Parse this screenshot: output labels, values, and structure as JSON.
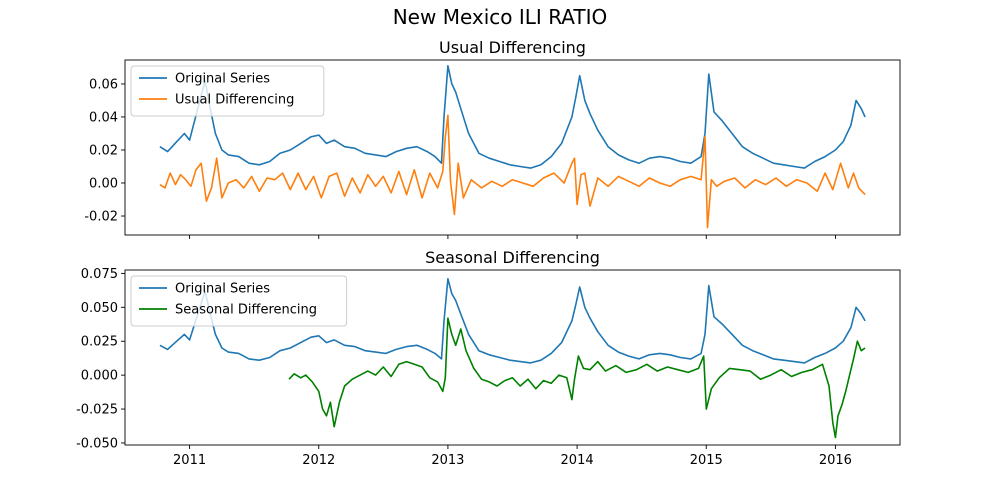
{
  "figure": {
    "title": "New Mexico ILI RATIO"
  },
  "colors": {
    "original": "#1f77b4",
    "usual": "#ff7f0e",
    "seasonal": "#008000"
  },
  "chart_data": [
    {
      "type": "line",
      "title": "Usual Differencing",
      "xlabel": "",
      "ylabel": "",
      "x_tick_labels": [
        "2011",
        "2012",
        "2013",
        "2014",
        "2015",
        "2016"
      ],
      "y_tick_labels": [
        "-0.02",
        "0.00",
        "0.02",
        "0.04",
        "0.06"
      ],
      "y_ticks": [
        -0.02,
        0.0,
        0.02,
        0.04,
        0.06
      ],
      "xlim": [
        2010.5,
        2016.5
      ],
      "ylim": [
        -0.0315,
        0.0745
      ],
      "legend": {
        "placement": "upper-left",
        "entries": [
          "Original Series",
          "Usual Differencing"
        ]
      },
      "series": [
        {
          "name": "Original Series",
          "color": "#1f77b4",
          "x": [
            2010.77,
            2010.83,
            2010.9,
            2010.96,
            2011.0,
            2011.04,
            2011.08,
            2011.12,
            2011.16,
            2011.2,
            2011.25,
            2011.3,
            2011.38,
            2011.46,
            2011.54,
            2011.62,
            2011.7,
            2011.78,
            2011.86,
            2011.94,
            2012.0,
            2012.06,
            2012.12,
            2012.2,
            2012.28,
            2012.36,
            2012.44,
            2012.52,
            2012.6,
            2012.68,
            2012.76,
            2012.84,
            2012.9,
            2012.95,
            2012.97,
            2013.0,
            2013.03,
            2013.06,
            2013.1,
            2013.16,
            2013.24,
            2013.32,
            2013.4,
            2013.48,
            2013.56,
            2013.64,
            2013.72,
            2013.8,
            2013.88,
            2013.96,
            2013.99,
            2014.02,
            2014.06,
            2014.1,
            2014.16,
            2014.24,
            2014.32,
            2014.4,
            2014.48,
            2014.56,
            2014.64,
            2014.72,
            2014.8,
            2014.88,
            2014.96,
            2014.99,
            2015.02,
            2015.06,
            2015.12,
            2015.2,
            2015.28,
            2015.36,
            2015.44,
            2015.52,
            2015.6,
            2015.68,
            2015.76,
            2015.84,
            2015.92,
            2016.0,
            2016.06,
            2016.12,
            2016.16,
            2016.2,
            2016.23
          ],
          "y": [
            0.022,
            0.019,
            0.025,
            0.03,
            0.026,
            0.038,
            0.05,
            0.062,
            0.045,
            0.03,
            0.02,
            0.017,
            0.016,
            0.012,
            0.011,
            0.013,
            0.018,
            0.02,
            0.024,
            0.028,
            0.029,
            0.024,
            0.026,
            0.022,
            0.021,
            0.018,
            0.017,
            0.016,
            0.019,
            0.021,
            0.022,
            0.019,
            0.016,
            0.012,
            0.04,
            0.071,
            0.06,
            0.055,
            0.045,
            0.03,
            0.018,
            0.015,
            0.013,
            0.011,
            0.01,
            0.009,
            0.011,
            0.016,
            0.024,
            0.04,
            0.052,
            0.065,
            0.05,
            0.042,
            0.032,
            0.022,
            0.017,
            0.014,
            0.012,
            0.015,
            0.016,
            0.015,
            0.013,
            0.012,
            0.016,
            0.03,
            0.066,
            0.043,
            0.038,
            0.03,
            0.022,
            0.018,
            0.015,
            0.012,
            0.011,
            0.01,
            0.009,
            0.013,
            0.016,
            0.02,
            0.025,
            0.035,
            0.05,
            0.045,
            0.04
          ]
        },
        {
          "name": "Usual Differencing",
          "color": "#ff7f0e",
          "x": [
            2010.77,
            2010.81,
            2010.85,
            2010.89,
            2010.93,
            2010.97,
            2011.01,
            2011.05,
            2011.09,
            2011.13,
            2011.17,
            2011.21,
            2011.25,
            2011.3,
            2011.36,
            2011.42,
            2011.48,
            2011.54,
            2011.6,
            2011.66,
            2011.72,
            2011.78,
            2011.84,
            2011.9,
            2011.96,
            2012.02,
            2012.08,
            2012.14,
            2012.2,
            2012.26,
            2012.32,
            2012.38,
            2012.44,
            2012.5,
            2012.56,
            2012.62,
            2012.68,
            2012.74,
            2012.8,
            2012.86,
            2012.92,
            2012.96,
            2012.98,
            2013.0,
            2013.02,
            2013.05,
            2013.08,
            2013.12,
            2013.18,
            2013.26,
            2013.34,
            2013.42,
            2013.5,
            2013.58,
            2013.66,
            2013.74,
            2013.82,
            2013.9,
            2013.96,
            2013.98,
            2014.0,
            2014.03,
            2014.06,
            2014.1,
            2014.16,
            2014.24,
            2014.32,
            2014.4,
            2014.48,
            2014.56,
            2014.64,
            2014.72,
            2014.8,
            2014.88,
            2014.96,
            2014.99,
            2015.01,
            2015.04,
            2015.08,
            2015.14,
            2015.22,
            2015.3,
            2015.38,
            2015.46,
            2015.54,
            2015.62,
            2015.7,
            2015.78,
            2015.86,
            2015.92,
            2015.98,
            2016.04,
            2016.1,
            2016.14,
            2016.18,
            2016.23
          ],
          "y": [
            -0.001,
            -0.003,
            0.006,
            -0.001,
            0.005,
            0.002,
            -0.002,
            0.008,
            0.012,
            -0.011,
            -0.003,
            0.015,
            -0.009,
            0.0,
            0.002,
            -0.003,
            0.004,
            -0.005,
            0.003,
            0.002,
            0.006,
            -0.004,
            0.006,
            -0.004,
            0.004,
            -0.009,
            0.004,
            0.006,
            -0.008,
            0.003,
            -0.006,
            0.005,
            -0.002,
            0.004,
            -0.006,
            0.007,
            -0.007,
            0.008,
            -0.009,
            0.006,
            -0.003,
            0.007,
            0.028,
            0.041,
            0.001,
            -0.019,
            0.012,
            -0.009,
            0.002,
            -0.003,
            0.001,
            -0.002,
            0.002,
            0.0,
            -0.002,
            0.003,
            0.006,
            0.0,
            0.012,
            0.015,
            -0.013,
            0.005,
            0.006,
            -0.014,
            0.003,
            -0.002,
            0.004,
            0.001,
            -0.002,
            0.003,
            0.0,
            -0.002,
            0.002,
            0.004,
            0.002,
            0.028,
            -0.027,
            0.002,
            -0.002,
            0.001,
            0.003,
            -0.003,
            0.002,
            -0.001,
            0.003,
            -0.002,
            0.002,
            0.0,
            -0.005,
            0.006,
            -0.004,
            0.012,
            -0.003,
            0.006,
            -0.003,
            -0.007
          ]
        }
      ]
    },
    {
      "type": "line",
      "title": "Seasonal Differencing",
      "xlabel": "",
      "ylabel": "",
      "x_tick_labels": [
        "2011",
        "2012",
        "2013",
        "2014",
        "2015",
        "2016"
      ],
      "y_tick_labels": [
        "-0.050",
        "-0.025",
        "0.000",
        "0.025",
        "0.050",
        "0.075"
      ],
      "y_ticks": [
        -0.05,
        -0.025,
        0.0,
        0.025,
        0.05,
        0.075
      ],
      "xlim": [
        2010.5,
        2016.5
      ],
      "ylim": [
        -0.0515,
        0.0775
      ],
      "legend": {
        "placement": "upper-left",
        "entries": [
          "Original Series",
          "Seasonal Differencing"
        ]
      },
      "series": [
        {
          "name": "Original Series",
          "color": "#1f77b4",
          "x": [
            2010.77,
            2010.83,
            2010.9,
            2010.96,
            2011.0,
            2011.04,
            2011.08,
            2011.12,
            2011.16,
            2011.2,
            2011.25,
            2011.3,
            2011.38,
            2011.46,
            2011.54,
            2011.62,
            2011.7,
            2011.78,
            2011.86,
            2011.94,
            2012.0,
            2012.06,
            2012.12,
            2012.2,
            2012.28,
            2012.36,
            2012.44,
            2012.52,
            2012.6,
            2012.68,
            2012.76,
            2012.84,
            2012.9,
            2012.95,
            2012.97,
            2013.0,
            2013.03,
            2013.06,
            2013.1,
            2013.16,
            2013.24,
            2013.32,
            2013.4,
            2013.48,
            2013.56,
            2013.64,
            2013.72,
            2013.8,
            2013.88,
            2013.96,
            2013.99,
            2014.02,
            2014.06,
            2014.1,
            2014.16,
            2014.24,
            2014.32,
            2014.4,
            2014.48,
            2014.56,
            2014.64,
            2014.72,
            2014.8,
            2014.88,
            2014.96,
            2014.99,
            2015.02,
            2015.06,
            2015.12,
            2015.2,
            2015.28,
            2015.36,
            2015.44,
            2015.52,
            2015.6,
            2015.68,
            2015.76,
            2015.84,
            2015.92,
            2016.0,
            2016.06,
            2016.12,
            2016.16,
            2016.2,
            2016.23
          ],
          "y": [
            0.022,
            0.019,
            0.025,
            0.03,
            0.026,
            0.038,
            0.05,
            0.062,
            0.045,
            0.03,
            0.02,
            0.017,
            0.016,
            0.012,
            0.011,
            0.013,
            0.018,
            0.02,
            0.024,
            0.028,
            0.029,
            0.024,
            0.026,
            0.022,
            0.021,
            0.018,
            0.017,
            0.016,
            0.019,
            0.021,
            0.022,
            0.019,
            0.016,
            0.012,
            0.04,
            0.071,
            0.06,
            0.055,
            0.045,
            0.03,
            0.018,
            0.015,
            0.013,
            0.011,
            0.01,
            0.009,
            0.011,
            0.016,
            0.024,
            0.04,
            0.052,
            0.065,
            0.05,
            0.042,
            0.032,
            0.022,
            0.017,
            0.014,
            0.012,
            0.015,
            0.016,
            0.015,
            0.013,
            0.012,
            0.016,
            0.03,
            0.066,
            0.043,
            0.038,
            0.03,
            0.022,
            0.018,
            0.015,
            0.012,
            0.011,
            0.01,
            0.009,
            0.013,
            0.016,
            0.02,
            0.025,
            0.035,
            0.05,
            0.045,
            0.04
          ]
        },
        {
          "name": "Seasonal Differencing",
          "color": "#008000",
          "x": [
            2011.77,
            2011.81,
            2011.86,
            2011.9,
            2011.95,
            2012.0,
            2012.03,
            2012.06,
            2012.09,
            2012.12,
            2012.16,
            2012.2,
            2012.26,
            2012.32,
            2012.38,
            2012.44,
            2012.5,
            2012.56,
            2012.62,
            2012.68,
            2012.74,
            2012.8,
            2012.86,
            2012.92,
            2012.96,
            2012.98,
            2013.0,
            2013.03,
            2013.06,
            2013.1,
            2013.14,
            2013.2,
            2013.26,
            2013.32,
            2013.38,
            2013.44,
            2013.5,
            2013.56,
            2013.62,
            2013.68,
            2013.74,
            2013.8,
            2013.86,
            2013.92,
            2013.96,
            2013.98,
            2014.01,
            2014.05,
            2014.1,
            2014.16,
            2014.22,
            2014.3,
            2014.38,
            2014.46,
            2014.54,
            2014.62,
            2014.7,
            2014.78,
            2014.86,
            2014.94,
            2014.98,
            2015.0,
            2015.04,
            2015.1,
            2015.18,
            2015.26,
            2015.34,
            2015.42,
            2015.5,
            2015.58,
            2015.66,
            2015.74,
            2015.82,
            2015.9,
            2015.95,
            2015.98,
            2016.0,
            2016.02,
            2016.05,
            2016.08,
            2016.11,
            2016.14,
            2016.17,
            2016.2,
            2016.23
          ],
          "y": [
            -0.003,
            0.001,
            -0.002,
            0.0,
            -0.005,
            -0.012,
            -0.025,
            -0.03,
            -0.02,
            -0.038,
            -0.02,
            -0.008,
            -0.003,
            0.0,
            0.003,
            0.0,
            0.006,
            -0.001,
            0.008,
            0.01,
            0.008,
            0.006,
            -0.002,
            -0.005,
            -0.012,
            -0.002,
            0.042,
            0.03,
            0.022,
            0.034,
            0.018,
            0.005,
            -0.003,
            -0.005,
            -0.008,
            -0.004,
            -0.002,
            -0.008,
            -0.003,
            -0.01,
            -0.004,
            -0.006,
            0.0,
            -0.002,
            -0.018,
            -0.003,
            0.014,
            0.005,
            0.004,
            0.01,
            0.003,
            0.007,
            0.002,
            0.004,
            0.008,
            0.003,
            0.006,
            0.004,
            0.002,
            0.005,
            0.014,
            -0.025,
            -0.01,
            -0.002,
            0.005,
            0.004,
            0.003,
            -0.003,
            0.0,
            0.004,
            -0.001,
            0.002,
            0.004,
            0.008,
            -0.008,
            -0.035,
            -0.046,
            -0.03,
            -0.022,
            -0.012,
            0.0,
            0.012,
            0.025,
            0.018,
            0.02
          ]
        }
      ]
    }
  ]
}
